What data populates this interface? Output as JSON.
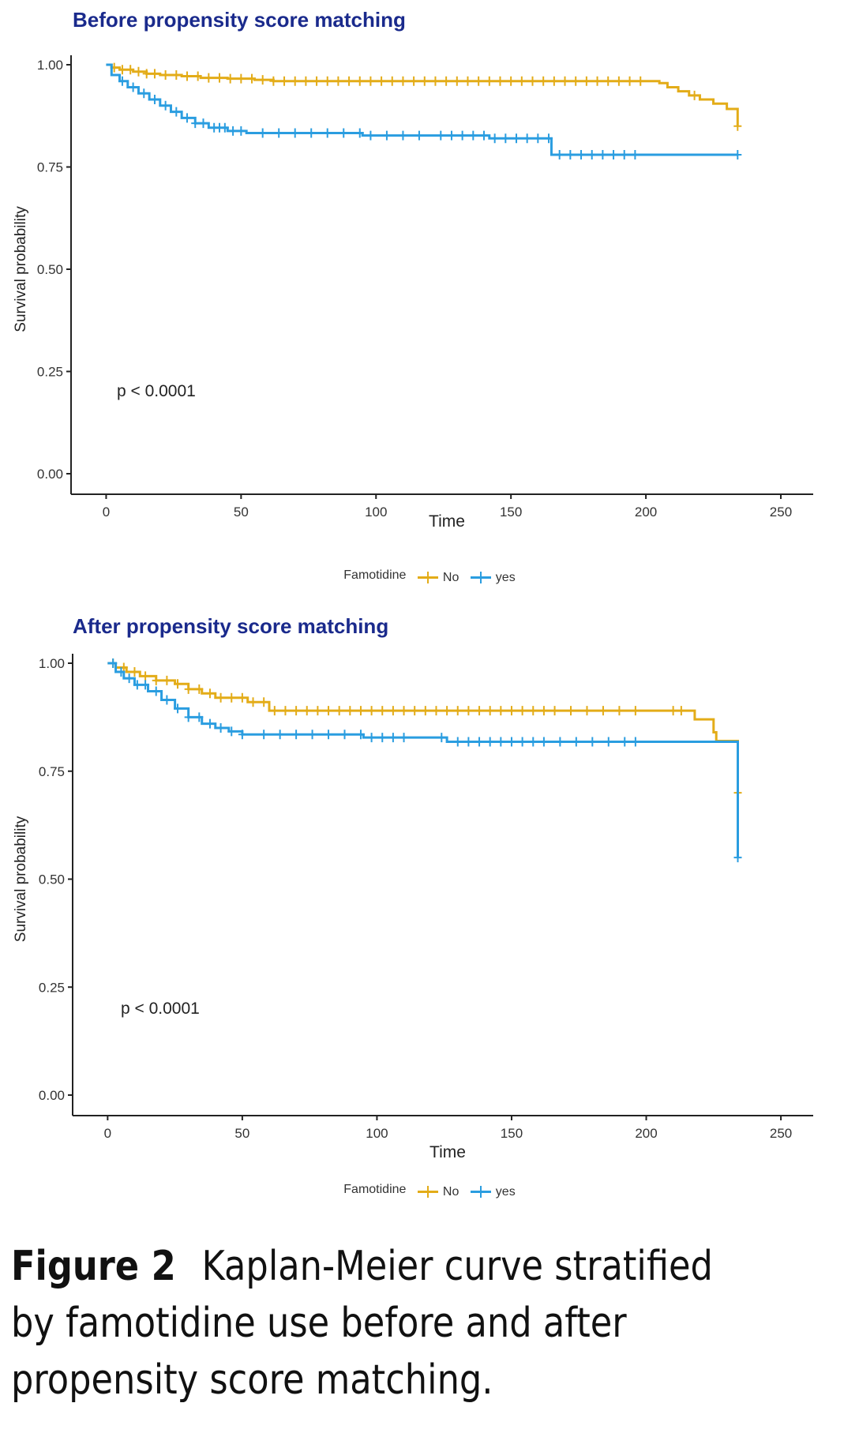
{
  "chart_data": [
    {
      "type": "line",
      "title": "Before propensity score matching",
      "xlabel": "Time",
      "ylabel": "Survival probability",
      "xlim": [
        -13,
        262
      ],
      "ylim": [
        0,
        1.0
      ],
      "x_ticks": [
        "0",
        "50",
        "100",
        "150",
        "200",
        "250"
      ],
      "y_ticks": [
        "0.00",
        "0.25",
        "0.50",
        "0.75",
        "1.00"
      ],
      "annotation": "p < 0.0001",
      "legend": {
        "title": "Famotidine",
        "position": "bottom"
      },
      "series": [
        {
          "name": "No",
          "color": "#e3ac18",
          "steps": [
            [
              0,
              1.0
            ],
            [
              2,
              0.993
            ],
            [
              5,
              0.988
            ],
            [
              10,
              0.983
            ],
            [
              15,
              0.978
            ],
            [
              20,
              0.975
            ],
            [
              28,
              0.972
            ],
            [
              35,
              0.968
            ],
            [
              45,
              0.966
            ],
            [
              55,
              0.963
            ],
            [
              62,
              0.96
            ],
            [
              200,
              0.96
            ],
            [
              205,
              0.955
            ],
            [
              208,
              0.945
            ],
            [
              212,
              0.935
            ],
            [
              216,
              0.925
            ],
            [
              220,
              0.915
            ],
            [
              225,
              0.905
            ],
            [
              230,
              0.892
            ],
            [
              234,
              0.88
            ],
            [
              234,
              0.85
            ]
          ],
          "censor_x": [
            3,
            6,
            9,
            12,
            15,
            18,
            22,
            26,
            30,
            34,
            38,
            42,
            46,
            50,
            54,
            58,
            62,
            66,
            70,
            74,
            78,
            82,
            86,
            90,
            94,
            98,
            102,
            106,
            110,
            114,
            118,
            122,
            126,
            130,
            134,
            138,
            142,
            146,
            150,
            154,
            158,
            162,
            166,
            170,
            174,
            178,
            182,
            186,
            190,
            194,
            198,
            218,
            234
          ]
        },
        {
          "name": "yes",
          "color": "#2a9de0",
          "steps": [
            [
              0,
              1.0
            ],
            [
              2,
              0.975
            ],
            [
              5,
              0.96
            ],
            [
              8,
              0.945
            ],
            [
              12,
              0.93
            ],
            [
              16,
              0.915
            ],
            [
              20,
              0.9
            ],
            [
              24,
              0.885
            ],
            [
              28,
              0.87
            ],
            [
              33,
              0.857
            ],
            [
              38,
              0.846
            ],
            [
              45,
              0.838
            ],
            [
              52,
              0.833
            ],
            [
              95,
              0.827
            ],
            [
              142,
              0.82
            ],
            [
              165,
              0.78
            ],
            [
              234,
              0.78
            ]
          ],
          "censor_x": [
            6,
            10,
            14,
            18,
            22,
            26,
            30,
            33,
            36,
            40,
            42,
            44,
            47,
            50,
            58,
            64,
            70,
            76,
            82,
            88,
            94,
            98,
            104,
            110,
            116,
            124,
            128,
            132,
            136,
            140,
            144,
            148,
            152,
            156,
            160,
            164,
            168,
            172,
            176,
            180,
            184,
            188,
            192,
            196,
            234
          ]
        }
      ]
    },
    {
      "type": "line",
      "title": "After propensity score matching",
      "xlabel": "Time",
      "ylabel": "Survival probability",
      "xlim": [
        -13,
        262
      ],
      "ylim": [
        0,
        1.0
      ],
      "x_ticks": [
        "0",
        "50",
        "100",
        "150",
        "200",
        "250"
      ],
      "y_ticks": [
        "0.00",
        "0.25",
        "0.50",
        "0.75",
        "1.00"
      ],
      "annotation": "p < 0.0001",
      "legend": {
        "title": "Famotidine",
        "position": "bottom"
      },
      "series": [
        {
          "name": "No",
          "color": "#e3ac18",
          "steps": [
            [
              0,
              1.0
            ],
            [
              3,
              0.99
            ],
            [
              7,
              0.98
            ],
            [
              12,
              0.97
            ],
            [
              18,
              0.96
            ],
            [
              25,
              0.952
            ],
            [
              30,
              0.94
            ],
            [
              35,
              0.93
            ],
            [
              40,
              0.92
            ],
            [
              52,
              0.91
            ],
            [
              60,
              0.89
            ],
            [
              216,
              0.89
            ],
            [
              218,
              0.87
            ],
            [
              225,
              0.84
            ],
            [
              226,
              0.82
            ],
            [
              234,
              0.82
            ],
            [
              234,
              0.7
            ]
          ],
          "censor_x": [
            2,
            6,
            10,
            14,
            18,
            22,
            26,
            30,
            34,
            38,
            42,
            46,
            50,
            54,
            58,
            62,
            66,
            70,
            74,
            78,
            82,
            86,
            90,
            94,
            98,
            102,
            106,
            110,
            114,
            118,
            122,
            126,
            130,
            134,
            138,
            142,
            146,
            150,
            154,
            158,
            162,
            166,
            172,
            178,
            184,
            190,
            196,
            210,
            213,
            234
          ]
        },
        {
          "name": "yes",
          "color": "#2a9de0",
          "steps": [
            [
              0,
              1.0
            ],
            [
              3,
              0.98
            ],
            [
              6,
              0.965
            ],
            [
              10,
              0.95
            ],
            [
              15,
              0.935
            ],
            [
              20,
              0.915
            ],
            [
              25,
              0.895
            ],
            [
              30,
              0.875
            ],
            [
              35,
              0.86
            ],
            [
              40,
              0.85
            ],
            [
              45,
              0.842
            ],
            [
              50,
              0.835
            ],
            [
              95,
              0.828
            ],
            [
              126,
              0.818
            ],
            [
              234,
              0.818
            ],
            [
              234,
              0.55
            ]
          ],
          "censor_x": [
            2,
            5,
            8,
            11,
            14,
            18,
            22,
            26,
            30,
            34,
            38,
            42,
            46,
            50,
            58,
            64,
            70,
            76,
            82,
            88,
            94,
            98,
            102,
            106,
            110,
            124,
            130,
            134,
            138,
            142,
            146,
            150,
            154,
            158,
            162,
            168,
            174,
            180,
            186,
            192,
            196,
            234
          ]
        }
      ]
    }
  ],
  "legend_title": "Famotidine",
  "legend_no": "No",
  "legend_yes": "yes",
  "caption": {
    "label": "Figure 2",
    "text": "Kaplan-Meier curve stratified by famotidine use before and after propensity score matching."
  }
}
